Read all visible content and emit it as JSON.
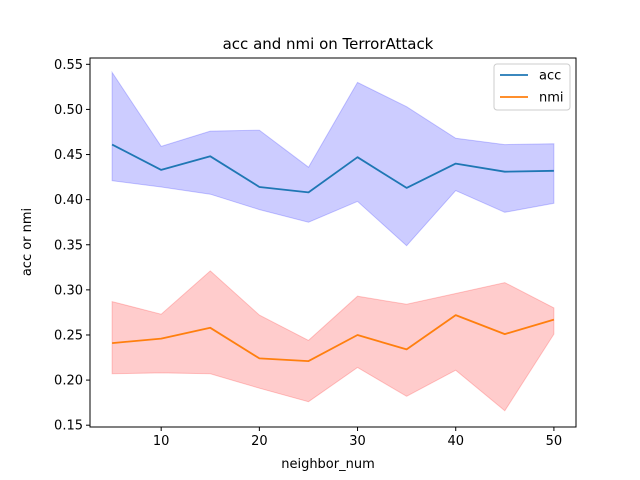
{
  "chart_data": {
    "type": "line",
    "title": "acc and nmi on TerrorAttack",
    "xlabel": "neighbor_num",
    "ylabel": "acc or nmi",
    "x": [
      5,
      10,
      15,
      20,
      25,
      30,
      35,
      40,
      45,
      50
    ],
    "xlim": [
      2.75,
      52.25
    ],
    "ylim": [
      0.148,
      0.557
    ],
    "xticks": [
      10,
      20,
      30,
      40,
      50
    ],
    "yticks": [
      0.15,
      0.2,
      0.25,
      0.3,
      0.35,
      0.4,
      0.45,
      0.5,
      0.55
    ],
    "ytick_labels": [
      "0.15",
      "0.20",
      "0.25",
      "0.30",
      "0.35",
      "0.40",
      "0.45",
      "0.50",
      "0.55"
    ],
    "grid": false,
    "legend_position": "top-right",
    "series": [
      {
        "name": "acc",
        "color": "#1f77b4",
        "band_color": "#0000ff",
        "values": [
          0.461,
          0.433,
          0.448,
          0.414,
          0.408,
          0.447,
          0.413,
          0.44,
          0.431,
          0.432
        ],
        "upper": [
          0.541,
          0.459,
          0.476,
          0.477,
          0.436,
          0.53,
          0.503,
          0.468,
          0.461,
          0.462
        ],
        "lower": [
          0.421,
          0.414,
          0.406,
          0.389,
          0.375,
          0.398,
          0.349,
          0.41,
          0.386,
          0.396
        ]
      },
      {
        "name": "nmi",
        "color": "#ff7f0e",
        "band_color": "#ff0000",
        "values": [
          0.241,
          0.246,
          0.258,
          0.224,
          0.221,
          0.25,
          0.234,
          0.272,
          0.251,
          0.267
        ],
        "upper": [
          0.287,
          0.273,
          0.321,
          0.272,
          0.244,
          0.293,
          0.284,
          0.296,
          0.308,
          0.28
        ],
        "lower": [
          0.207,
          0.208,
          0.207,
          0.191,
          0.176,
          0.214,
          0.182,
          0.211,
          0.166,
          0.251
        ]
      }
    ]
  }
}
